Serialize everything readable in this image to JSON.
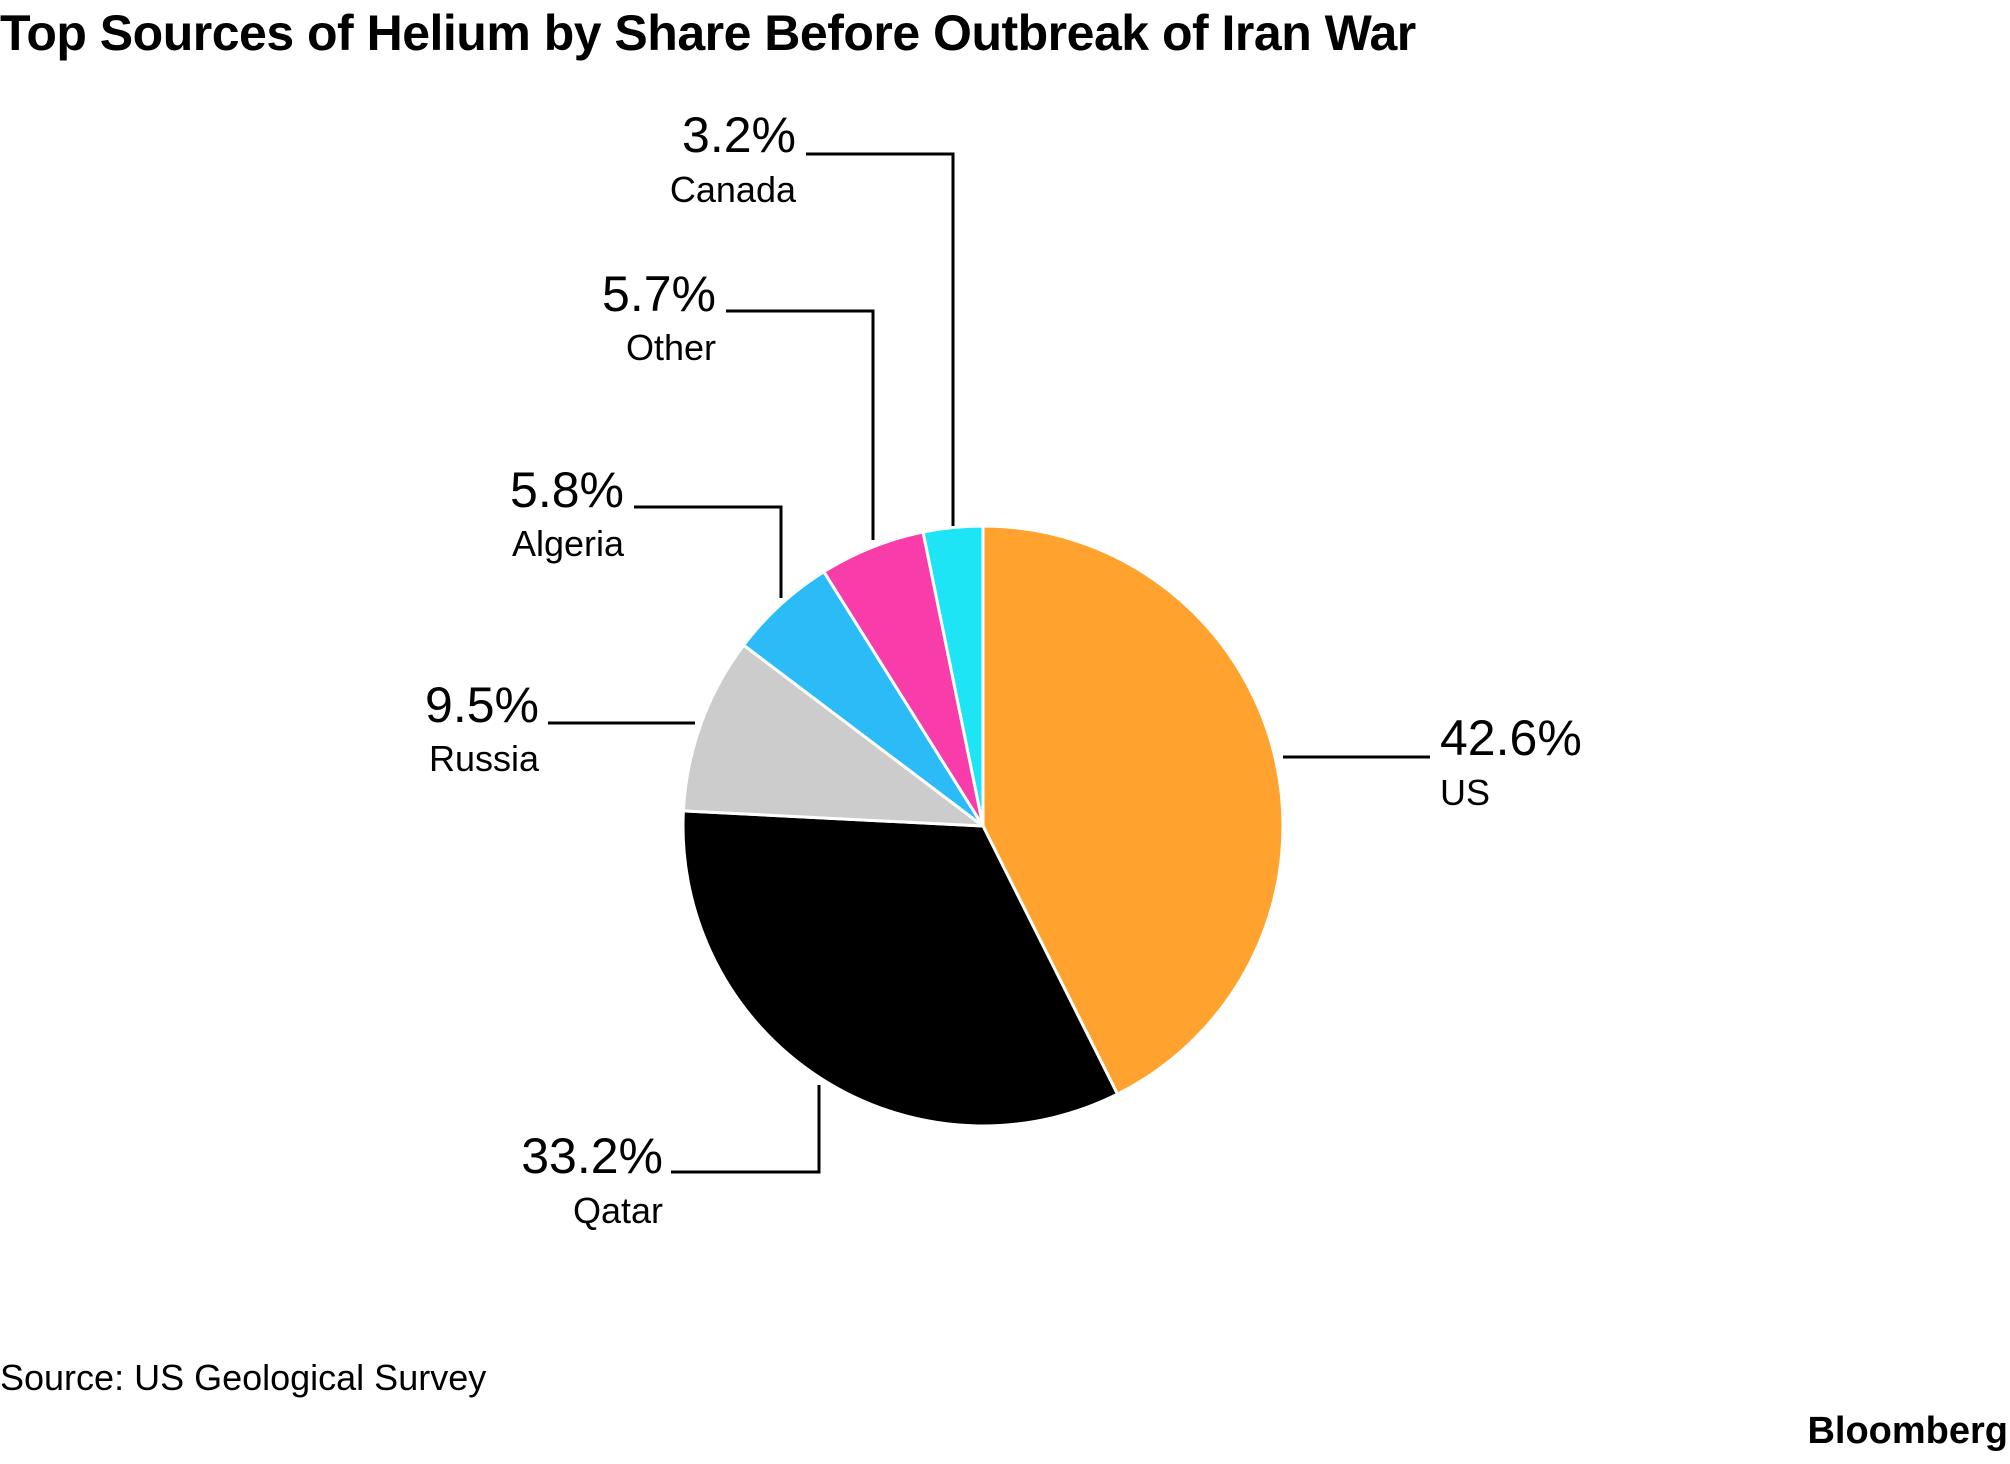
{
  "title": "Top Sources of Helium by Share Before Outbreak of Iran War",
  "source": "Source: US Geological Survey",
  "brand": "Bloomberg",
  "chart_data": {
    "type": "pie",
    "title": "Top Sources of Helium by Share Before Outbreak of Iran War",
    "slices": [
      {
        "name": "US",
        "value": 42.6,
        "label": "42.6%",
        "color": "#FFA22E"
      },
      {
        "name": "Qatar",
        "value": 33.2,
        "label": "33.2%",
        "color": "#000000"
      },
      {
        "name": "Russia",
        "value": 9.5,
        "label": "9.5%",
        "color": "#CCCCCC"
      },
      {
        "name": "Algeria",
        "value": 5.8,
        "label": "5.8%",
        "color": "#2BBBF6"
      },
      {
        "name": "Other",
        "value": 5.7,
        "label": "5.7%",
        "color": "#F83CAA"
      },
      {
        "name": "Canada",
        "value": 3.2,
        "label": "3.2%",
        "color": "#1DE5F5"
      }
    ],
    "start_angle": "12 o'clock",
    "direction": "clockwise",
    "legend": "none"
  }
}
